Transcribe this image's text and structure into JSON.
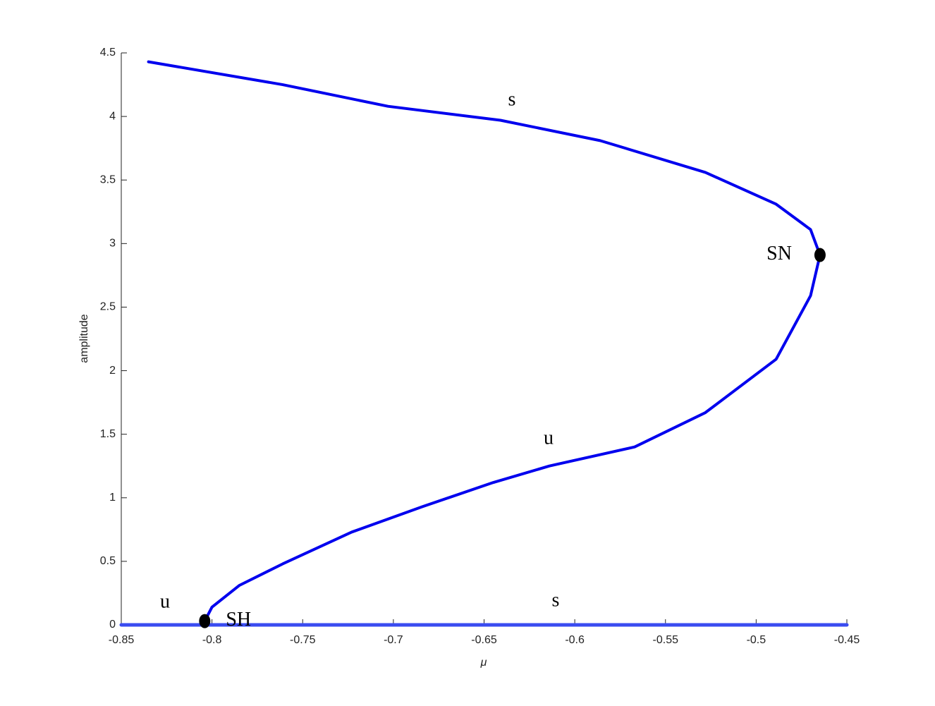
{
  "chart_data": {
    "type": "line",
    "xlabel": "μ",
    "ylabel": "amplitude",
    "xlim": [
      -0.85,
      -0.45
    ],
    "ylim": [
      0,
      4.5
    ],
    "xticks": [
      -0.85,
      -0.8,
      -0.75,
      -0.7,
      -0.65,
      -0.6,
      -0.55,
      -0.5,
      -0.45
    ],
    "yticks": [
      0,
      0.5,
      1,
      1.5,
      2,
      2.5,
      3,
      3.5,
      4,
      4.5
    ],
    "series": [
      {
        "color": "#0000ee",
        "x": [
          -0.835,
          -0.761,
          -0.703,
          -0.641,
          -0.586,
          -0.528,
          -0.489,
          -0.47,
          -0.4648,
          -0.47,
          -0.489,
          -0.528,
          -0.567,
          -0.614,
          -0.645,
          -0.684,
          -0.723,
          -0.761,
          -0.785,
          -0.8,
          -0.804
        ],
        "values": [
          4.43,
          4.25,
          4.08,
          3.97,
          3.81,
          3.56,
          3.31,
          3.11,
          2.91,
          2.59,
          2.09,
          1.67,
          1.4,
          1.25,
          1.12,
          0.93,
          0.73,
          0.48,
          0.31,
          0.14,
          0.03
        ]
      },
      {
        "color": "#3a4cf0",
        "x": [
          -0.85,
          -0.45
        ],
        "values": [
          0,
          0
        ]
      }
    ],
    "points": [
      {
        "label": "SN",
        "x": -0.4648,
        "y": 2.91
      },
      {
        "label": "SH",
        "x": -0.804,
        "y": 0.03
      }
    ],
    "stability_labels": [
      "s",
      "u",
      "u",
      "s"
    ]
  }
}
